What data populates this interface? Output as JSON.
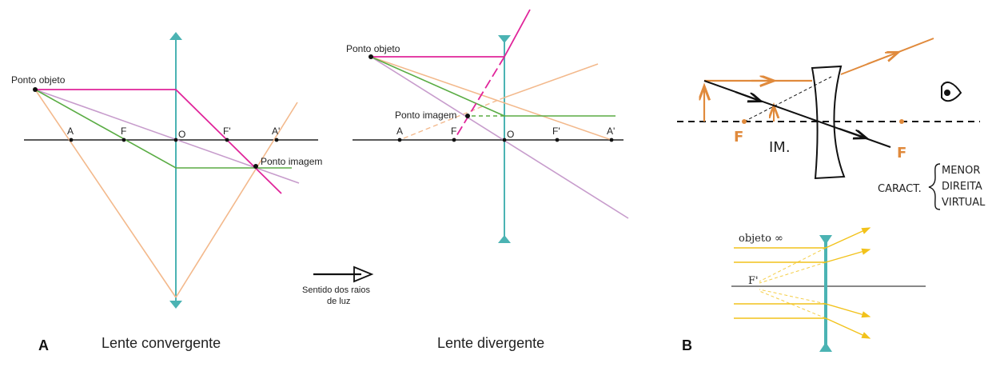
{
  "panel_a": {
    "marker": "A",
    "convergent": {
      "caption": "Lente convergente",
      "object_label": "Ponto objeto",
      "image_label": "Ponto imagem",
      "axis_labels": [
        "A",
        "F",
        "O",
        "F'",
        "A'"
      ]
    },
    "divergent": {
      "caption": "Lente divergente",
      "object_label": "Ponto objeto",
      "image_label": "Ponto imagem",
      "axis_labels": [
        "A",
        "F",
        "O",
        "F'",
        "A'"
      ]
    },
    "direction_note": [
      "Sentido dos raios",
      "de luz"
    ]
  },
  "panel_b": {
    "marker": "B",
    "sketch": {
      "focus_left": "F",
      "focus_right": "F",
      "image_tag": "IM.",
      "caract_label": "CARACT.",
      "characteristics": [
        "MENOR",
        "DIREITA",
        "VIRTUAL"
      ]
    },
    "infinity": {
      "object_label": "objeto ∞",
      "focus_label": "F'"
    }
  },
  "colors": {
    "lens": "#4bb3b3",
    "magenta": "#e0249a",
    "green": "#5aac44",
    "lilac": "#c79ccc",
    "peach": "#f3b98c",
    "orange": "#e08a3c",
    "yellow": "#f2c21b",
    "axis": "#222222"
  }
}
